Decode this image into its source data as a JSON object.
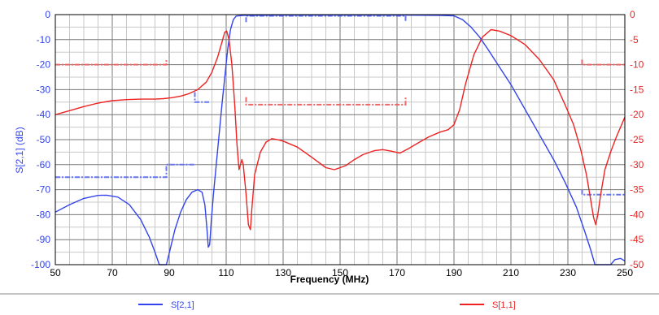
{
  "chart_data": {
    "type": "line",
    "xlabel": "Frequency (MHz)",
    "ylabel_left": "S[2,1] (dB)",
    "ylabel_right": "",
    "x_ticks": [
      50,
      70,
      90,
      110,
      130,
      150,
      170,
      190,
      210,
      230,
      250
    ],
    "y_left_ticks": [
      0,
      -10,
      -20,
      -30,
      -40,
      -50,
      -60,
      -70,
      -80,
      -90,
      -100
    ],
    "y_right_ticks": [
      0,
      -5,
      -10,
      -15,
      -20,
      -25,
      -30,
      -35,
      -40,
      -45,
      -50
    ],
    "xlim": [
      50,
      250
    ],
    "ylim_left": [
      -100,
      0
    ],
    "ylim_right": [
      -50,
      0
    ],
    "grid": true,
    "legend_position": "bottom",
    "series": [
      {
        "name": "S[2,1]",
        "axis": "left",
        "color": "#3344ee",
        "points": [
          [
            50,
            -79
          ],
          [
            55,
            -76
          ],
          [
            60,
            -73.5
          ],
          [
            65,
            -72.3
          ],
          [
            68,
            -72.2
          ],
          [
            72,
            -73
          ],
          [
            76,
            -76
          ],
          [
            80,
            -82
          ],
          [
            83,
            -89
          ],
          [
            85,
            -95
          ],
          [
            86.5,
            -100
          ],
          [
            89,
            -100
          ],
          [
            90.5,
            -93
          ],
          [
            92,
            -86
          ],
          [
            94,
            -79
          ],
          [
            96,
            -74
          ],
          [
            98,
            -71
          ],
          [
            100,
            -70
          ],
          [
            101.5,
            -71
          ],
          [
            102.5,
            -76
          ],
          [
            103.2,
            -85
          ],
          [
            103.7,
            -93
          ],
          [
            104.2,
            -92
          ],
          [
            104.8,
            -82
          ],
          [
            105.5,
            -72
          ],
          [
            106.5,
            -60
          ],
          [
            107.5,
            -48
          ],
          [
            108.5,
            -36
          ],
          [
            109.5,
            -25
          ],
          [
            110.5,
            -14
          ],
          [
            111.5,
            -6
          ],
          [
            112.5,
            -2
          ],
          [
            113.5,
            -0.6
          ],
          [
            116,
            -0.3
          ],
          [
            130,
            -0.2
          ],
          [
            150,
            -0.2
          ],
          [
            170,
            -0.2
          ],
          [
            185,
            -0.3
          ],
          [
            190,
            -0.5
          ],
          [
            193,
            -2
          ],
          [
            196,
            -5
          ],
          [
            199,
            -9
          ],
          [
            202,
            -14
          ],
          [
            206,
            -21
          ],
          [
            210,
            -28
          ],
          [
            215,
            -38
          ],
          [
            220,
            -48
          ],
          [
            225,
            -58
          ],
          [
            229,
            -67
          ],
          [
            233,
            -77
          ],
          [
            236,
            -87
          ],
          [
            238,
            -94
          ],
          [
            239.5,
            -100
          ],
          [
            245,
            -100
          ],
          [
            246.5,
            -98
          ],
          [
            248.5,
            -97.5
          ],
          [
            250,
            -98.5
          ]
        ]
      },
      {
        "name": "S[1,1]",
        "axis": "right",
        "color": "#ee2222",
        "points": [
          [
            50,
            -20
          ],
          [
            55,
            -19.2
          ],
          [
            60,
            -18.4
          ],
          [
            65,
            -17.7
          ],
          [
            70,
            -17.2
          ],
          [
            75,
            -17
          ],
          [
            80,
            -16.9
          ],
          [
            85,
            -16.9
          ],
          [
            88,
            -16.8
          ],
          [
            91,
            -16.6
          ],
          [
            94,
            -16.3
          ],
          [
            97,
            -15.8
          ],
          [
            100,
            -15
          ],
          [
            103,
            -13.5
          ],
          [
            105,
            -11.5
          ],
          [
            107,
            -8.5
          ],
          [
            108.5,
            -5.5
          ],
          [
            109.5,
            -3.5
          ],
          [
            110.2,
            -3.3
          ],
          [
            111,
            -5
          ],
          [
            112,
            -10
          ],
          [
            113,
            -18
          ],
          [
            113.8,
            -26
          ],
          [
            114.5,
            -31
          ],
          [
            115,
            -30
          ],
          [
            115.5,
            -29
          ],
          [
            116,
            -30
          ],
          [
            117,
            -36
          ],
          [
            117.8,
            -42
          ],
          [
            118.5,
            -43
          ],
          [
            119,
            -39
          ],
          [
            120,
            -32
          ],
          [
            122,
            -27.5
          ],
          [
            124,
            -25.5
          ],
          [
            126,
            -24.8
          ],
          [
            128,
            -25
          ],
          [
            130,
            -25.3
          ],
          [
            135,
            -26.5
          ],
          [
            140,
            -28.5
          ],
          [
            145,
            -30.6
          ],
          [
            148,
            -31
          ],
          [
            152,
            -30.2
          ],
          [
            155,
            -29
          ],
          [
            158,
            -28
          ],
          [
            162,
            -27.2
          ],
          [
            165,
            -27
          ],
          [
            168,
            -27.3
          ],
          [
            171,
            -27.7
          ],
          [
            174,
            -26.8
          ],
          [
            177,
            -25.8
          ],
          [
            181,
            -24.5
          ],
          [
            185,
            -23.5
          ],
          [
            188,
            -23
          ],
          [
            190,
            -22
          ],
          [
            192,
            -19
          ],
          [
            194,
            -14
          ],
          [
            197,
            -8
          ],
          [
            200,
            -4.5
          ],
          [
            203,
            -3
          ],
          [
            206,
            -3.3
          ],
          [
            210,
            -4.2
          ],
          [
            215,
            -6
          ],
          [
            220,
            -9
          ],
          [
            225,
            -13
          ],
          [
            229,
            -18
          ],
          [
            232,
            -22
          ],
          [
            234.5,
            -27
          ],
          [
            236.5,
            -32
          ],
          [
            238,
            -37
          ],
          [
            239,
            -40.5
          ],
          [
            239.8,
            -42
          ],
          [
            240.5,
            -40
          ],
          [
            241.5,
            -36
          ],
          [
            243,
            -31
          ],
          [
            245,
            -27.5
          ],
          [
            247,
            -24.5
          ],
          [
            250,
            -20.5
          ]
        ]
      }
    ],
    "masks": [
      {
        "axis": "left",
        "color": "#6677ee",
        "points": [
          [
            50,
            -65
          ],
          [
            89,
            -65
          ],
          [
            89,
            -60
          ],
          [
            99,
            -60
          ]
        ]
      },
      {
        "axis": "left",
        "color": "#6677ee",
        "points": [
          [
            99,
            -31
          ],
          [
            99,
            -35
          ],
          [
            104,
            -35
          ]
        ]
      },
      {
        "axis": "left",
        "color": "#6677ee",
        "points": [
          [
            117,
            -3
          ],
          [
            117,
            -0.5
          ],
          [
            173,
            -0.5
          ],
          [
            173,
            -3
          ]
        ]
      },
      {
        "axis": "left",
        "color": "#6677ee",
        "points": [
          [
            235,
            -70
          ],
          [
            235,
            -72
          ],
          [
            250,
            -72
          ]
        ]
      },
      {
        "axis": "right",
        "color": "#ee6666",
        "points": [
          [
            50,
            -10
          ],
          [
            89,
            -10
          ],
          [
            89,
            -9
          ]
        ]
      },
      {
        "axis": "right",
        "color": "#ee6666",
        "points": [
          [
            117,
            -16.5
          ],
          [
            117,
            -18
          ],
          [
            173,
            -18
          ],
          [
            173,
            -16.5
          ]
        ]
      },
      {
        "axis": "right",
        "color": "#ee6666",
        "points": [
          [
            235,
            -9
          ],
          [
            235,
            -10
          ],
          [
            250,
            -10
          ]
        ]
      }
    ]
  }
}
